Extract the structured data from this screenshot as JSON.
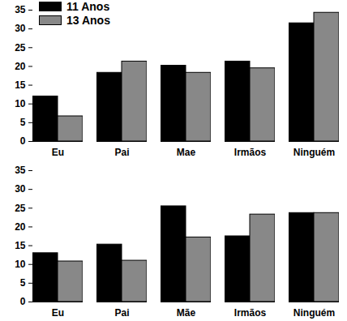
{
  "chart_data": [
    {
      "type": "bar",
      "categories": [
        "Eu",
        "Pai",
        "Mae",
        "Irmãos",
        "Ninguém"
      ],
      "series": [
        {
          "name": "11 Anos",
          "color": "#000000",
          "values": [
            12,
            18.3,
            20.2,
            21.3,
            31.5
          ]
        },
        {
          "name": "13 Anos",
          "color": "#888888",
          "values": [
            6.7,
            21.3,
            18.3,
            19.5,
            34.3
          ]
        }
      ],
      "ylim": [
        0,
        35
      ],
      "yticks": [
        0,
        5,
        10,
        15,
        20,
        25,
        30,
        35
      ],
      "legend": "top-left"
    },
    {
      "type": "bar",
      "categories": [
        "Eu",
        "Pai",
        "Mãe",
        "Irmãos",
        "Ninguém"
      ],
      "series": [
        {
          "name": "11 Anos",
          "color": "#000000",
          "values": [
            13,
            15.3,
            25.5,
            17.5,
            23.7
          ]
        },
        {
          "name": "13 Anos",
          "color": "#888888",
          "values": [
            10.8,
            11,
            17.2,
            23.3,
            23.7
          ]
        }
      ],
      "ylim": [
        0,
        35
      ],
      "yticks": [
        0,
        5,
        10,
        15,
        20,
        25,
        30,
        35
      ]
    }
  ]
}
